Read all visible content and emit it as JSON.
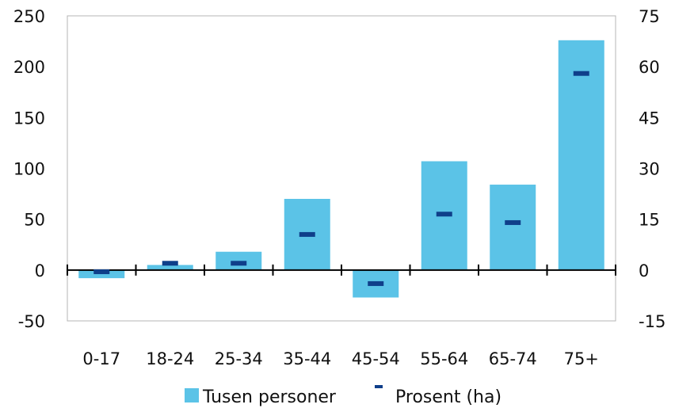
{
  "chart_data": {
    "type": "bar",
    "categories": [
      "0-17",
      "18-24",
      "25-34",
      "35-44",
      "45-54",
      "55-64",
      "65-74",
      "75+"
    ],
    "series": [
      {
        "name": "Tusen personer",
        "type": "bar",
        "axis": "left",
        "values": [
          -8,
          5,
          18,
          70,
          -27,
          107,
          84,
          226
        ]
      },
      {
        "name": "Prosent (ha)",
        "type": "marker",
        "axis": "right",
        "values": [
          -0.5,
          2,
          2,
          10.5,
          -4,
          16.5,
          14,
          58
        ]
      }
    ],
    "y_left": {
      "min": -50,
      "max": 250,
      "ticks": [
        -50,
        0,
        50,
        100,
        150,
        200,
        250
      ]
    },
    "y_right": {
      "min": -15,
      "max": 75,
      "ticks": [
        -15,
        0,
        15,
        30,
        45,
        60,
        75
      ]
    },
    "legend_position": "bottom-center",
    "colors": {
      "bar": "#5bc3e7",
      "marker": "#0f3f8a",
      "axis": "#000000",
      "frame": "#b5b5b5"
    }
  }
}
